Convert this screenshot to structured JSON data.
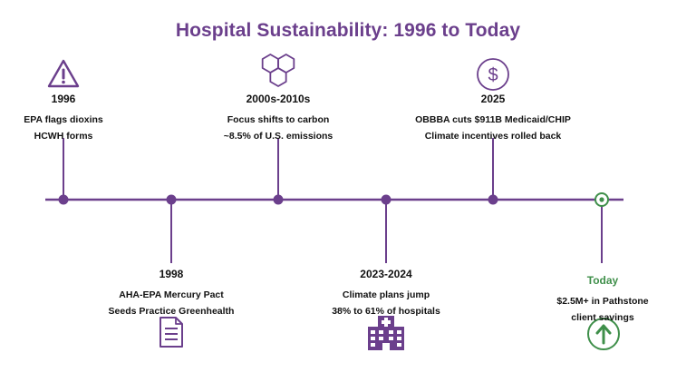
{
  "title": "Hospital Sustainability: 1996 to Today",
  "colors": {
    "title": "#6b3f8c",
    "timeline": "#6b3f8c",
    "icon_purple": "#6b3f8c",
    "today_green": "#3f8f4a",
    "text": "#111111"
  },
  "events": [
    {
      "year": "1996",
      "lines": [
        "EPA flags dioxins",
        "HCWH forms"
      ],
      "icon": "warning-triangle-icon",
      "side": "above"
    },
    {
      "year": "1998",
      "lines": [
        "AHA-EPA Mercury Pact",
        "Seeds Practice Greenhealth"
      ],
      "icon": "document-icon",
      "side": "below"
    },
    {
      "year": "2000s-2010s",
      "lines": [
        "Focus shifts to carbon",
        "~8.5% of U.S. emissions"
      ],
      "icon": "hexagon-molecule-icon",
      "side": "above"
    },
    {
      "year": "2023-2024",
      "lines": [
        "Climate plans jump",
        "38% to 61% of hospitals"
      ],
      "icon": "hospital-building-icon",
      "side": "below"
    },
    {
      "year": "2025",
      "lines": [
        "OBBBA cuts $911B Medicaid/CHIP",
        "Climate incentives rolled back"
      ],
      "icon": "dollar-circle-icon",
      "side": "above"
    },
    {
      "year": "Today",
      "lines": [
        "$2.5M+ in Pathstone",
        "client savings"
      ],
      "icon": "up-arrow-circle-icon",
      "side": "below"
    }
  ]
}
